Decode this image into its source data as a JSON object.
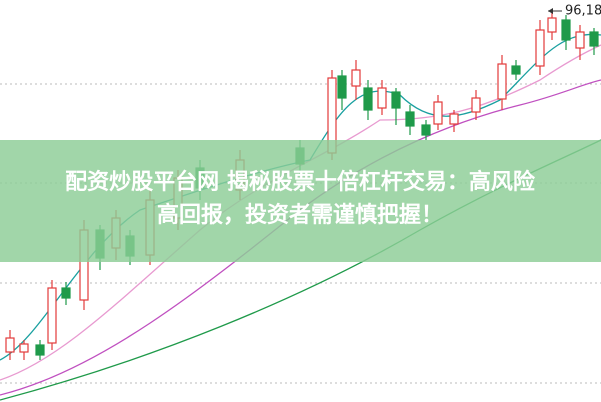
{
  "price_label": "96,18",
  "banner": {
    "line1": "配资炒股平台网 揭秘股票十倍杠杆交易：高风险",
    "line2": "高回报，投资者需谨慎把握！"
  }
}
